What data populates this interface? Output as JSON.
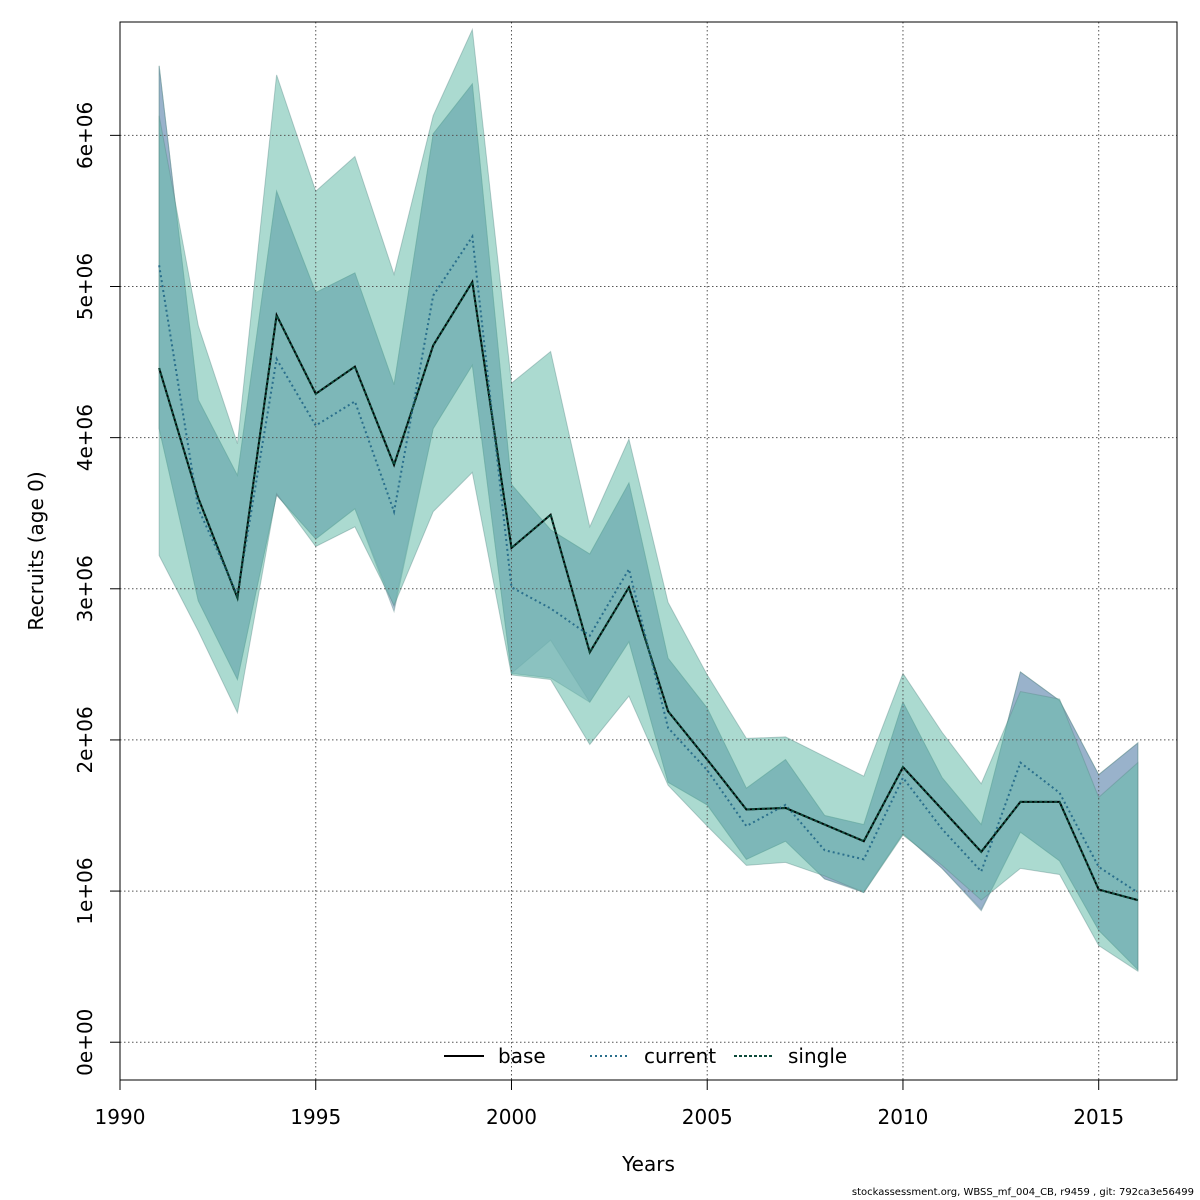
{
  "chart_data": {
    "type": "line",
    "xlabel": "Years",
    "ylabel": "Recruits (age 0)",
    "xlim": [
      1990,
      2017
    ],
    "ylim": [
      -250000,
      6750000
    ],
    "grid": true,
    "legend_position": "bottom-center",
    "x_ticks": [
      1990,
      1995,
      2000,
      2005,
      2010,
      2015
    ],
    "x_tick_labels": [
      "1990",
      "1995",
      "2000",
      "2005",
      "2010",
      "2015"
    ],
    "y_ticks": [
      0,
      1000000,
      2000000,
      3000000,
      4000000,
      5000000,
      6000000
    ],
    "y_tick_labels": [
      "0e+00",
      "1e+06",
      "2e+06",
      "3e+06",
      "4e+06",
      "5e+06",
      "6e+06"
    ],
    "x": [
      1991,
      1992,
      1993,
      1994,
      1995,
      1996,
      1997,
      1998,
      1999,
      2000,
      2001,
      2002,
      2003,
      2004,
      2005,
      2006,
      2007,
      2008,
      2009,
      2010,
      2011,
      2012,
      2013,
      2014,
      2015,
      2016
    ],
    "series": [
      {
        "name": "base",
        "color": "#000000",
        "dash": "solid",
        "values": [
          4460000,
          3600000,
          2940000,
          4810000,
          4290000,
          4470000,
          3820000,
          4610000,
          5030000,
          3270000,
          3490000,
          2580000,
          3010000,
          2190000,
          1870000,
          1540000,
          1550000,
          1440000,
          1330000,
          1820000,
          1540000,
          1260000,
          1590000,
          1590000,
          1010000,
          940000
        ],
        "lower": [
          4060000,
          2920000,
          2400000,
          3620000,
          3330000,
          3530000,
          2880000,
          4060000,
          4480000,
          2440000,
          2660000,
          2250000,
          2650000,
          1720000,
          1570000,
          1210000,
          1330000,
          1080000,
          1000000,
          1380000,
          1150000,
          880000,
          1390000,
          1200000,
          740000,
          480000
        ],
        "upper": [
          6460000,
          4250000,
          3750000,
          5630000,
          4960000,
          5090000,
          4350000,
          6010000,
          6340000,
          3690000,
          3390000,
          3230000,
          3700000,
          2540000,
          2210000,
          1680000,
          1870000,
          1500000,
          1440000,
          2250000,
          1750000,
          1440000,
          2450000,
          2260000,
          1770000,
          1980000
        ]
      },
      {
        "name": "current",
        "color": "#2a6f8c",
        "dash": "dotted",
        "values": [
          5140000,
          3530000,
          2960000,
          4520000,
          4080000,
          4240000,
          3510000,
          4940000,
          5330000,
          3010000,
          2870000,
          2690000,
          3130000,
          2080000,
          1800000,
          1430000,
          1570000,
          1270000,
          1210000,
          1750000,
          1410000,
          1130000,
          1850000,
          1650000,
          1160000,
          990000
        ],
        "lower": [
          4060000,
          2920000,
          2400000,
          3620000,
          3330000,
          3530000,
          2850000,
          4060000,
          4480000,
          2440000,
          2410000,
          2250000,
          2650000,
          1720000,
          1570000,
          1210000,
          1330000,
          1080000,
          990000,
          1380000,
          1150000,
          870000,
          1390000,
          1200000,
          740000,
          480000
        ],
        "upper": [
          6460000,
          4250000,
          3750000,
          5630000,
          4960000,
          5090000,
          4350000,
          6010000,
          6340000,
          3690000,
          3390000,
          3230000,
          3700000,
          2540000,
          2210000,
          1680000,
          1870000,
          1500000,
          1440000,
          2250000,
          1750000,
          1440000,
          2450000,
          2260000,
          1770000,
          1980000
        ]
      },
      {
        "name": "single",
        "color": "#0d4a3a",
        "dash": "dashed",
        "values": [
          4460000,
          3600000,
          2940000,
          4810000,
          4290000,
          4470000,
          3820000,
          4610000,
          5030000,
          3270000,
          3490000,
          2580000,
          3010000,
          2190000,
          1870000,
          1540000,
          1550000,
          1440000,
          1330000,
          1820000,
          1540000,
          1260000,
          1590000,
          1590000,
          1010000,
          940000
        ],
        "lower": [
          3220000,
          2720000,
          2180000,
          3630000,
          3280000,
          3410000,
          2890000,
          3510000,
          3770000,
          2430000,
          2400000,
          1970000,
          2290000,
          1700000,
          1430000,
          1170000,
          1190000,
          1100000,
          990000,
          1370000,
          1170000,
          940000,
          1150000,
          1110000,
          640000,
          470000
        ],
        "upper": [
          6130000,
          4740000,
          3960000,
          6400000,
          5630000,
          5860000,
          5080000,
          6130000,
          6700000,
          4360000,
          4570000,
          3410000,
          3990000,
          2910000,
          2430000,
          2010000,
          2020000,
          1890000,
          1760000,
          2440000,
          2050000,
          1710000,
          2320000,
          2270000,
          1620000,
          1850000
        ]
      }
    ],
    "band_colors": [
      "#7f9fbd",
      "#7f9fbd",
      "#66bbaa"
    ]
  },
  "footer_text": "stockassessment.org, WBSS_mf_004_CB, r9459 , git: 792ca3e56499"
}
